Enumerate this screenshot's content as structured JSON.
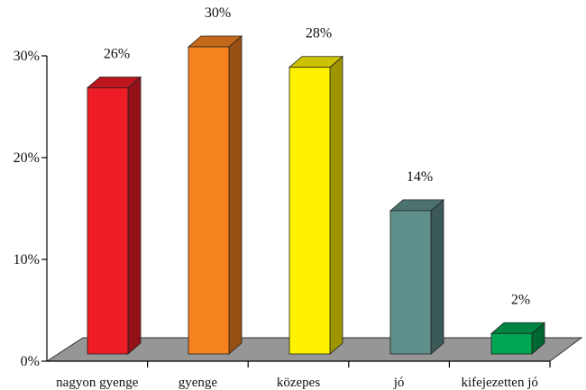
{
  "chart_data": {
    "type": "bar",
    "style": "3d-columns",
    "categories": [
      "nagyon gyenge",
      "gyenge",
      "közepes",
      "jó",
      "kifejezetten jó"
    ],
    "values": [
      26,
      30,
      28,
      14,
      2
    ],
    "data_labels": [
      "26%",
      "30%",
      "28%",
      "14%",
      "2%"
    ],
    "ylim": [
      0,
      30
    ],
    "yticks": [
      {
        "value": 0,
        "label": "0%"
      },
      {
        "value": 10,
        "label": "10%"
      },
      {
        "value": 20,
        "label": "20%"
      },
      {
        "value": 30,
        "label": "30%"
      }
    ],
    "grid": false,
    "legend": "none",
    "colors": {
      "bars": [
        "#ee1c25",
        "#f5821f",
        "#fff200",
        "#5f8f8a",
        "#00a651"
      ],
      "floor": "#969696",
      "axis": "#000000"
    }
  }
}
